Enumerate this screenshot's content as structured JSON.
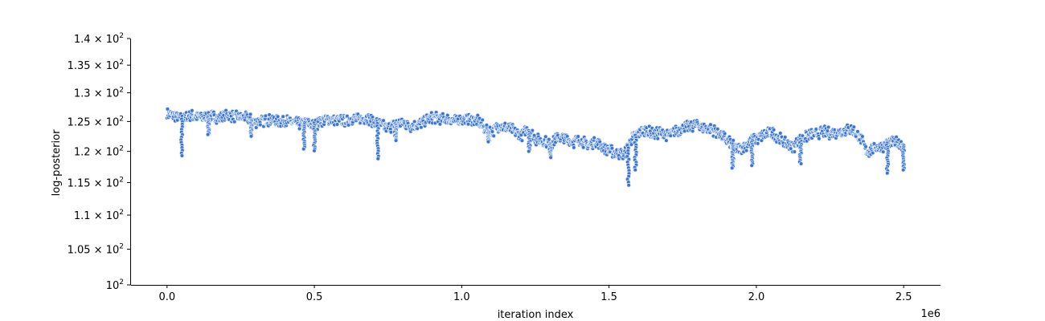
{
  "chart_data": {
    "type": "scatter",
    "title": "",
    "xlabel": "iteration index",
    "ylabel": "log-posterior",
    "x_offset_label": "1e6",
    "x_scale_factor": 1000000,
    "xlim": [
      -125000,
      2625000
    ],
    "ylim": [
      100,
      140
    ],
    "yscale": "log",
    "grid": false,
    "legend": "none",
    "x_ticks": [
      {
        "value": 0,
        "label": "0.0"
      },
      {
        "value": 500000,
        "label": "0.5"
      },
      {
        "value": 1000000,
        "label": "1.0"
      },
      {
        "value": 1500000,
        "label": "1.5"
      },
      {
        "value": 2000000,
        "label": "2.0"
      },
      {
        "value": 2500000,
        "label": "2.5"
      }
    ],
    "y_ticks": [
      {
        "value": 100,
        "mant": "10",
        "exp": "2"
      },
      {
        "value": 105,
        "mant": "1.05 × 10",
        "exp": "2"
      },
      {
        "value": 110,
        "mant": "1.1 × 10",
        "exp": "2"
      },
      {
        "value": 115,
        "mant": "1.15 × 10",
        "exp": "2"
      },
      {
        "value": 120,
        "mant": "1.2 × 10",
        "exp": "2"
      },
      {
        "value": 125,
        "mant": "1.25 × 10",
        "exp": "2"
      },
      {
        "value": 130,
        "mant": "1.3 × 10",
        "exp": "2"
      },
      {
        "value": 135,
        "mant": "1.35 × 10",
        "exp": "2"
      },
      {
        "value": 140,
        "mant": "1.4 × 10",
        "exp": "2"
      }
    ],
    "series": [
      {
        "color": "#3a75d6",
        "edge_color": "#e4ecfa",
        "x": [
          0,
          25000,
          50000,
          75000,
          100000,
          125000,
          150000,
          175000,
          200000,
          225000,
          250000,
          275000,
          300000,
          325000,
          350000,
          375000,
          400000,
          425000,
          450000,
          475000,
          500000,
          525000,
          550000,
          575000,
          600000,
          625000,
          650000,
          675000,
          700000,
          725000,
          750000,
          775000,
          800000,
          825000,
          850000,
          875000,
          900000,
          925000,
          950000,
          975000,
          1000000,
          1025000,
          1050000,
          1075000,
          1100000,
          1125000,
          1150000,
          1175000,
          1200000,
          1225000,
          1250000,
          1275000,
          1300000,
          1325000,
          1350000,
          1375000,
          1400000,
          1425000,
          1450000,
          1475000,
          1500000,
          1525000,
          1550000,
          1575000,
          1600000,
          1625000,
          1650000,
          1675000,
          1700000,
          1725000,
          1750000,
          1775000,
          1800000,
          1825000,
          1850000,
          1875000,
          1900000,
          1925000,
          1950000,
          1975000,
          2000000,
          2025000,
          2050000,
          2075000,
          2100000,
          2125000,
          2150000,
          2175000,
          2200000,
          2225000,
          2250000,
          2275000,
          2300000,
          2325000,
          2350000,
          2375000,
          2400000,
          2425000,
          2450000,
          2475000,
          2500000
        ],
        "y": [
          126.3,
          126.0,
          125.4,
          126.1,
          125.9,
          125.7,
          125.9,
          125.6,
          126.0,
          125.9,
          125.8,
          125.5,
          124.9,
          125.1,
          125.3,
          125.0,
          125.2,
          124.8,
          124.6,
          124.9,
          124.3,
          125.2,
          125.4,
          125.3,
          125.1,
          125.5,
          125.3,
          125.6,
          125.0,
          124.4,
          123.9,
          124.6,
          124.8,
          124.2,
          124.4,
          125.2,
          125.7,
          125.5,
          125.4,
          125.1,
          125.3,
          125.5,
          125.2,
          124.0,
          123.2,
          124.3,
          123.9,
          123.5,
          122.6,
          123.8,
          122.0,
          121.7,
          121.3,
          122.3,
          122.1,
          121.5,
          122.0,
          121.0,
          121.6,
          120.9,
          120.1,
          119.8,
          119.5,
          122.0,
          123.1,
          123.5,
          122.8,
          123.2,
          122.6,
          123.3,
          123.9,
          124.2,
          124.5,
          123.8,
          123.6,
          122.9,
          121.8,
          120.6,
          120.4,
          121.6,
          122.0,
          122.8,
          123.1,
          122.3,
          121.2,
          120.8,
          122.0,
          122.6,
          122.9,
          123.3,
          123.0,
          123.2,
          123.5,
          123.6,
          122.4,
          119.9,
          120.6,
          120.8,
          121.5,
          121.4,
          121.0
        ],
        "dips": [
          {
            "x": 50000,
            "min": 119.3
          },
          {
            "x": 140000,
            "min": 122.8
          },
          {
            "x": 285000,
            "min": 122.5
          },
          {
            "x": 465000,
            "min": 120.4
          },
          {
            "x": 500000,
            "min": 120.1
          },
          {
            "x": 715000,
            "min": 118.8
          },
          {
            "x": 775000,
            "min": 121.8
          },
          {
            "x": 1090000,
            "min": 121.6
          },
          {
            "x": 1230000,
            "min": 120.0
          },
          {
            "x": 1300000,
            "min": 119.0
          },
          {
            "x": 1565000,
            "min": 114.6
          },
          {
            "x": 1590000,
            "min": 117.0
          },
          {
            "x": 1920000,
            "min": 117.3
          },
          {
            "x": 1985000,
            "min": 117.7
          },
          {
            "x": 2150000,
            "min": 118.0
          },
          {
            "x": 2445000,
            "min": 116.5
          },
          {
            "x": 2500000,
            "min": 117.0
          }
        ]
      }
    ]
  }
}
